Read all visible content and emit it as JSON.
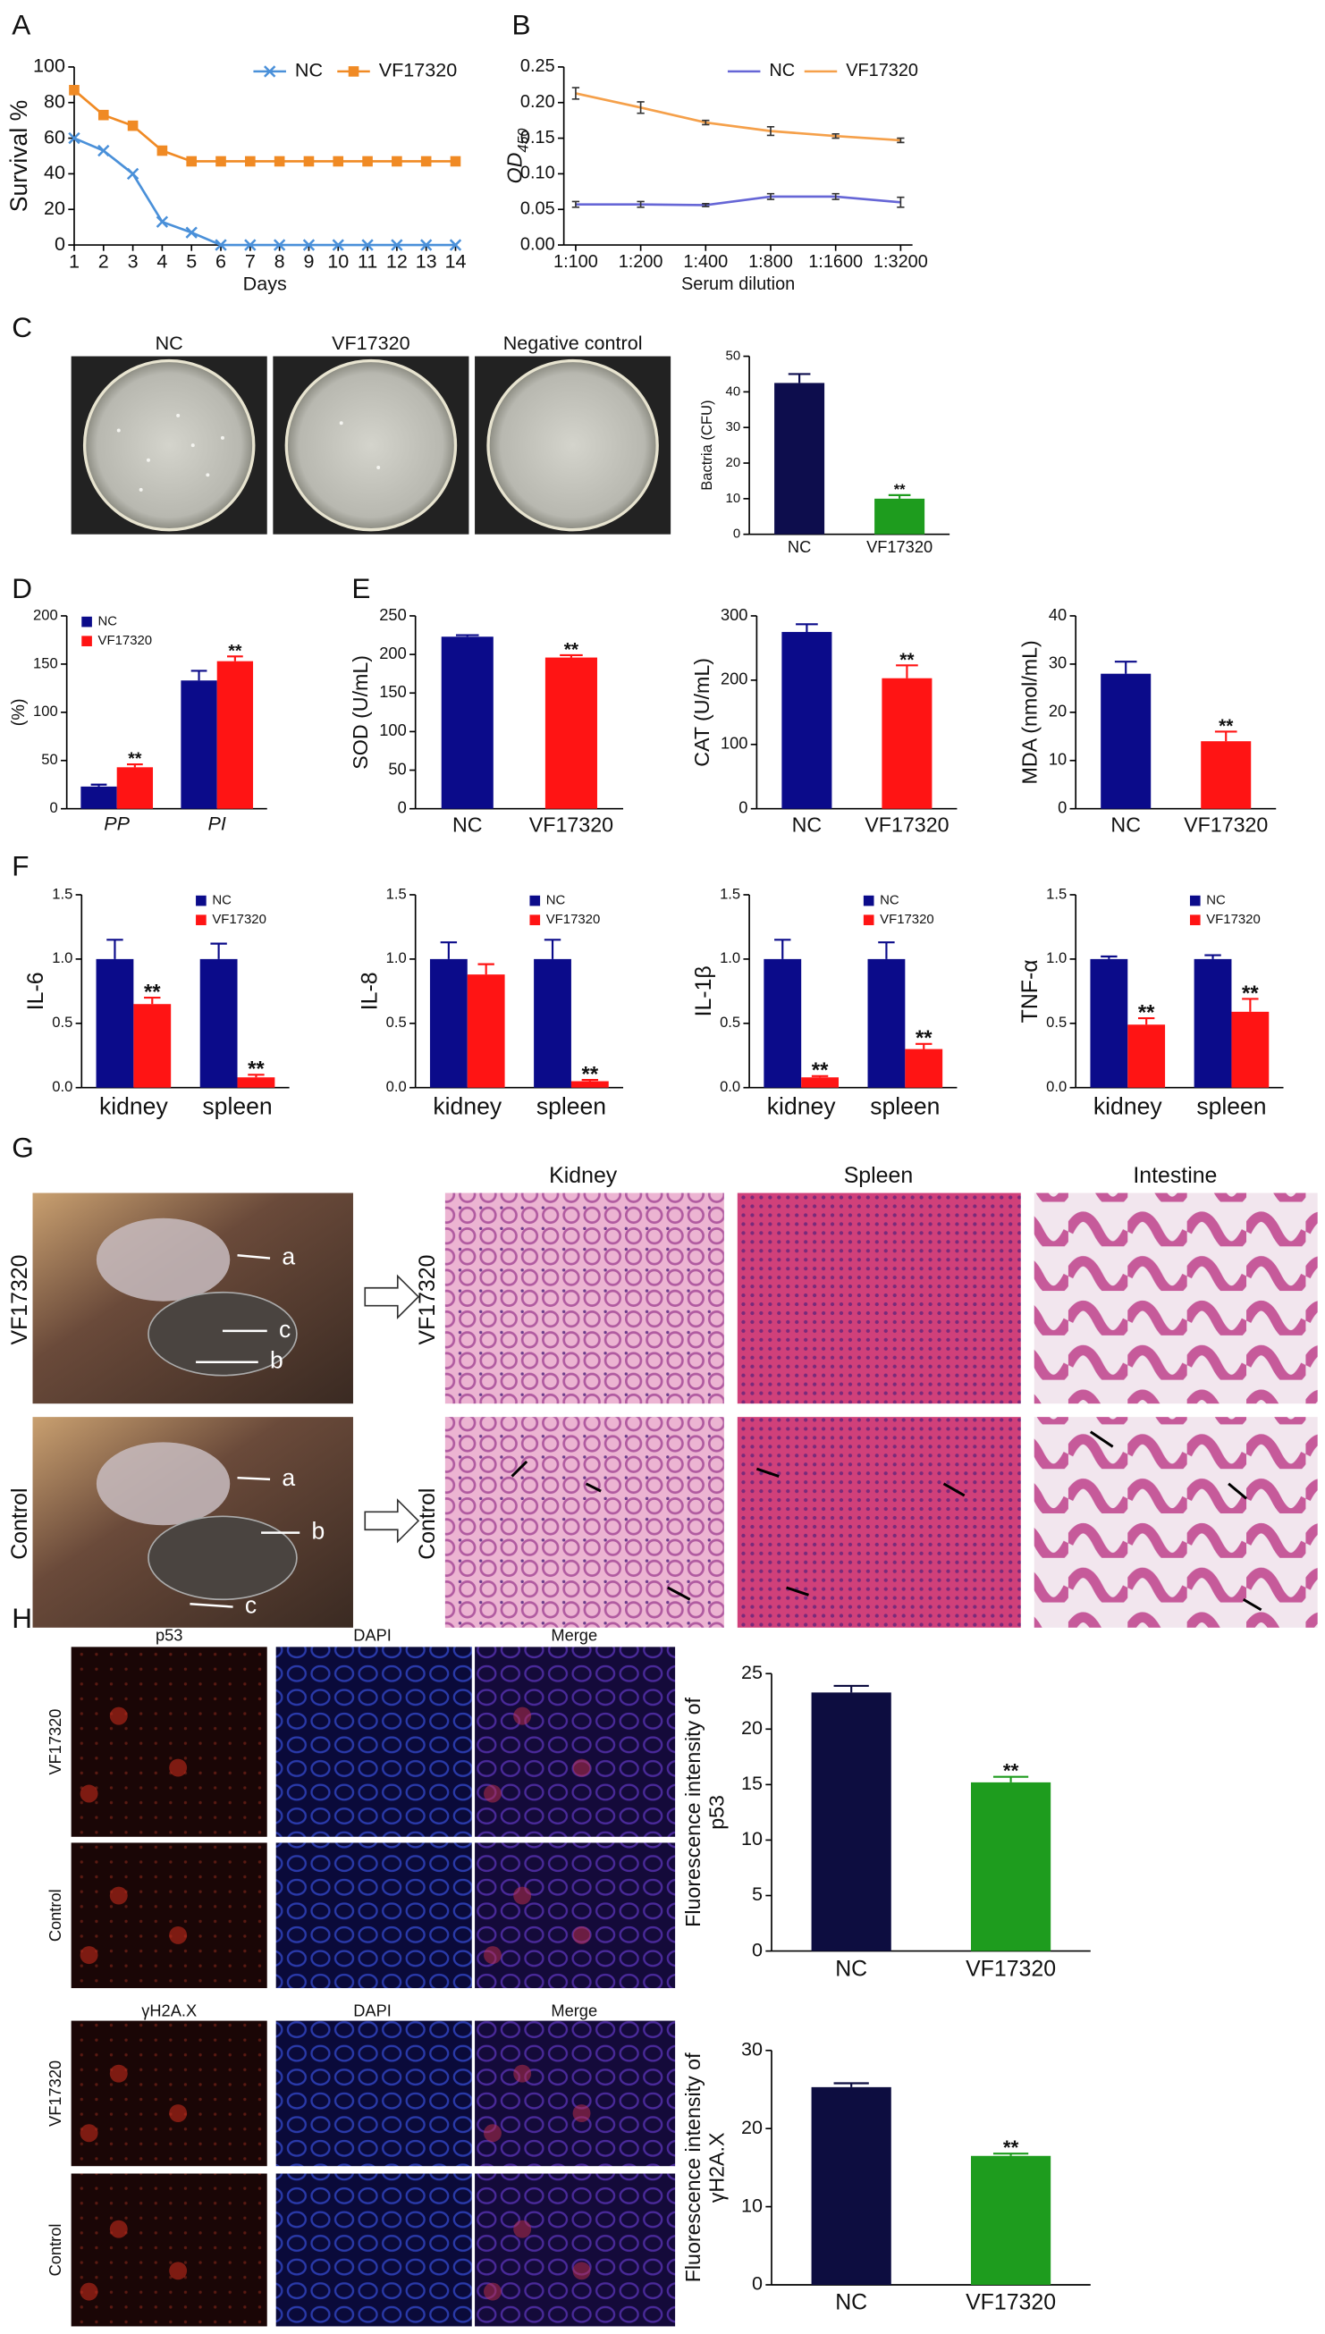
{
  "panels": {
    "letters": [
      "A",
      "B",
      "C",
      "D",
      "E",
      "F",
      "G",
      "H"
    ]
  },
  "plates": {
    "labels": [
      "NC",
      "VF17320",
      "Negative control"
    ]
  },
  "dissection": {
    "rows": [
      "VF17320",
      "Control"
    ],
    "callouts": [
      [
        "a",
        "c",
        "b"
      ],
      [
        "a",
        "b",
        "c"
      ]
    ],
    "columns": [
      "Kidney",
      "Spleen",
      "Intestine"
    ]
  },
  "fluorescence": {
    "blocks": [
      {
        "columns": [
          "p53",
          "DAPI",
          "Merge"
        ],
        "rows": [
          "VF17320",
          "Control"
        ]
      },
      {
        "columns": [
          "γH2A.X",
          "DAPI",
          "Merge"
        ],
        "rows": [
          "VF17320",
          "Control"
        ]
      }
    ]
  },
  "chart_data": [
    {
      "type": "line",
      "y_label": "Survival %",
      "x_label": "Days",
      "x": [
        1,
        2,
        3,
        4,
        5,
        6,
        7,
        8,
        9,
        10,
        11,
        12,
        13,
        14
      ],
      "xlim": [
        1,
        14
      ],
      "xticks": [
        1,
        2,
        3,
        4,
        5,
        6,
        7,
        8,
        9,
        10,
        11,
        12,
        13,
        14
      ],
      "ylim": [
        0,
        100
      ],
      "yticks": [
        0,
        20,
        40,
        60,
        80,
        100
      ],
      "legend": "top-right",
      "series": [
        {
          "name": "NC",
          "color": "#4a90d9",
          "marker": "x",
          "values": [
            60,
            53,
            40,
            13,
            7,
            0,
            0,
            0,
            0,
            0,
            0,
            0,
            0,
            0
          ]
        },
        {
          "name": "VF17320",
          "color": "#f08a24",
          "marker": "square",
          "values": [
            87,
            73,
            67,
            53,
            47,
            47,
            47,
            47,
            47,
            47,
            47,
            47,
            47,
            47
          ]
        }
      ]
    },
    {
      "type": "line",
      "y_label": "OD",
      "y_label_sub": "450",
      "x_label": "Serum dilution",
      "categories": [
        "1:100",
        "1:200",
        "1:400",
        "1:800",
        "1:1600",
        "1:3200"
      ],
      "ylim": [
        0,
        0.25
      ],
      "yticks": [
        {
          "value": 0,
          "label": "0.00"
        },
        0.05,
        {
          "value": 0.1,
          "label": "0.10"
        },
        0.15,
        {
          "value": 0.2,
          "label": "0.20"
        },
        0.25
      ],
      "legend": "top-right",
      "series": [
        {
          "name": "NC",
          "color": "#6666d6",
          "marker": "none",
          "values": [
            0.057,
            0.057,
            0.056,
            0.068,
            0.068,
            0.06
          ],
          "errors": [
            0.004,
            0.004,
            0.002,
            0.004,
            0.004,
            0.007
          ]
        },
        {
          "name": "VF17320",
          "color": "#f5a04a",
          "marker": "none",
          "values": [
            0.213,
            0.193,
            0.172,
            0.16,
            0.153,
            0.147
          ],
          "errors": [
            0.008,
            0.008,
            0.003,
            0.006,
            0.003,
            0.003
          ]
        }
      ]
    },
    {
      "type": "bar",
      "y_label": "Bactria (CFU)",
      "categories": [
        "NC",
        "VF17320"
      ],
      "values": [
        42.5,
        10
      ],
      "errors": [
        2.5,
        1
      ],
      "colors": [
        "#0d0d4d",
        "#1e9c1e"
      ],
      "significance": [
        null,
        "**"
      ],
      "ylim": [
        0,
        50
      ],
      "yticks": [
        0,
        10,
        20,
        30,
        40,
        50
      ]
    },
    {
      "type": "bar",
      "y_label": "(%)",
      "categories": [
        "PP",
        "PI"
      ],
      "italic_categories": true,
      "ylim": [
        0,
        200
      ],
      "yticks": [
        0,
        50,
        100,
        150,
        200
      ],
      "legend": "top-left",
      "series": [
        {
          "name": "NC",
          "color": "#0b0b8a",
          "values": [
            23,
            133
          ],
          "errors": [
            2,
            10
          ],
          "significance": [
            null,
            null
          ]
        },
        {
          "name": "VF17320",
          "color": "#ff1414",
          "values": [
            43,
            153
          ],
          "errors": [
            3,
            5
          ],
          "significance": [
            "**",
            "**"
          ]
        }
      ]
    },
    {
      "type": "bar",
      "y_label": "SOD (U/mL)",
      "categories": [
        "NC",
        "VF17320"
      ],
      "values": [
        223,
        196
      ],
      "errors": [
        2,
        3
      ],
      "colors": [
        "#0b0b8a",
        "#ff1414"
      ],
      "significance": [
        null,
        "**"
      ],
      "ylim": [
        0,
        250
      ],
      "yticks": [
        0,
        50,
        100,
        150,
        200,
        250
      ]
    },
    {
      "type": "bar",
      "y_label": "CAT (U/mL)",
      "categories": [
        "NC",
        "VF17320"
      ],
      "values": [
        275,
        203
      ],
      "errors": [
        12,
        20
      ],
      "colors": [
        "#0b0b8a",
        "#ff1414"
      ],
      "significance": [
        null,
        "**"
      ],
      "ylim": [
        0,
        300
      ],
      "yticks": [
        0,
        100,
        200,
        300
      ]
    },
    {
      "type": "bar",
      "y_label": "MDA (nmol/mL)",
      "categories": [
        "NC",
        "VF17320"
      ],
      "values": [
        28,
        14
      ],
      "errors": [
        2.5,
        2
      ],
      "colors": [
        "#0b0b8a",
        "#ff1414"
      ],
      "significance": [
        null,
        "**"
      ],
      "ylim": [
        0,
        40
      ],
      "yticks": [
        0,
        10,
        20,
        30,
        40
      ]
    },
    {
      "type": "bar",
      "y_label": "IL-6",
      "categories": [
        "kidney",
        "spleen"
      ],
      "ylim": [
        0,
        1.5
      ],
      "yticks": [
        {
          "value": 0,
          "label": "0.0"
        },
        0.5,
        {
          "value": 1,
          "label": "1.0"
        },
        1.5
      ],
      "legend": "top-right",
      "series": [
        {
          "name": "NC",
          "color": "#0b0b8a",
          "values": [
            1.0,
            1.0
          ],
          "errors": [
            0.15,
            0.12
          ],
          "significance": [
            null,
            null
          ]
        },
        {
          "name": "VF17320",
          "color": "#ff1414",
          "values": [
            0.65,
            0.08
          ],
          "errors": [
            0.05,
            0.02
          ],
          "significance": [
            "**",
            "**"
          ]
        }
      ]
    },
    {
      "type": "bar",
      "y_label": "IL-8",
      "categories": [
        "kidney",
        "spleen"
      ],
      "ylim": [
        0,
        1.5
      ],
      "yticks": [
        {
          "value": 0,
          "label": "0.0"
        },
        0.5,
        {
          "value": 1,
          "label": "1.0"
        },
        1.5
      ],
      "legend": "top-right",
      "series": [
        {
          "name": "NC",
          "color": "#0b0b8a",
          "values": [
            1.0,
            1.0
          ],
          "errors": [
            0.13,
            0.15
          ],
          "significance": [
            null,
            null
          ]
        },
        {
          "name": "VF17320",
          "color": "#ff1414",
          "values": [
            0.88,
            0.05
          ],
          "errors": [
            0.08,
            0.01
          ],
          "significance": [
            null,
            "**"
          ]
        }
      ]
    },
    {
      "type": "bar",
      "y_label": "IL-1β",
      "categories": [
        "kidney",
        "spleen"
      ],
      "ylim": [
        0,
        1.5
      ],
      "yticks": [
        {
          "value": 0,
          "label": "0.0"
        },
        0.5,
        {
          "value": 1,
          "label": "1.0"
        },
        1.5
      ],
      "legend": "top-right",
      "series": [
        {
          "name": "NC",
          "color": "#0b0b8a",
          "values": [
            1.0,
            1.0
          ],
          "errors": [
            0.15,
            0.13
          ],
          "significance": [
            null,
            null
          ]
        },
        {
          "name": "VF17320",
          "color": "#ff1414",
          "values": [
            0.08,
            0.3
          ],
          "errors": [
            0.01,
            0.04
          ],
          "significance": [
            "**",
            "**"
          ]
        }
      ]
    },
    {
      "type": "bar",
      "y_label": "TNF-α",
      "categories": [
        "kidney",
        "spleen"
      ],
      "ylim": [
        0,
        1.5
      ],
      "yticks": [
        {
          "value": 0,
          "label": "0.0"
        },
        0.5,
        {
          "value": 1,
          "label": "1.0"
        },
        1.5
      ],
      "legend": "top-right",
      "series": [
        {
          "name": "NC",
          "color": "#0b0b8a",
          "values": [
            1.0,
            1.0
          ],
          "errors": [
            0.02,
            0.03
          ],
          "significance": [
            null,
            null
          ]
        },
        {
          "name": "VF17320",
          "color": "#ff1414",
          "values": [
            0.49,
            0.59
          ],
          "errors": [
            0.05,
            0.1
          ],
          "significance": [
            "**",
            "**"
          ]
        }
      ]
    },
    {
      "type": "bar",
      "y_label": [
        "Fluorescence  intensity of",
        "p53"
      ],
      "categories": [
        "NC",
        "VF17320"
      ],
      "values": [
        23.3,
        15.2
      ],
      "errors": [
        0.6,
        0.5
      ],
      "colors": [
        "#0d0d40",
        "#1e9c1e"
      ],
      "significance": [
        null,
        "**"
      ],
      "ylim": [
        0,
        25
      ],
      "yticks": [
        0,
        5,
        10,
        15,
        20,
        25
      ]
    },
    {
      "type": "bar",
      "y_label": [
        "Fluorescence  intensity of",
        "γH2A.X"
      ],
      "categories": [
        "NC",
        "VF17320"
      ],
      "values": [
        25.3,
        16.5
      ],
      "errors": [
        0.5,
        0.3
      ],
      "colors": [
        "#0d0d40",
        "#1e9c1e"
      ],
      "significance": [
        null,
        "**"
      ],
      "ylim": [
        0,
        30
      ],
      "yticks": [
        0,
        10,
        20,
        30
      ]
    }
  ]
}
